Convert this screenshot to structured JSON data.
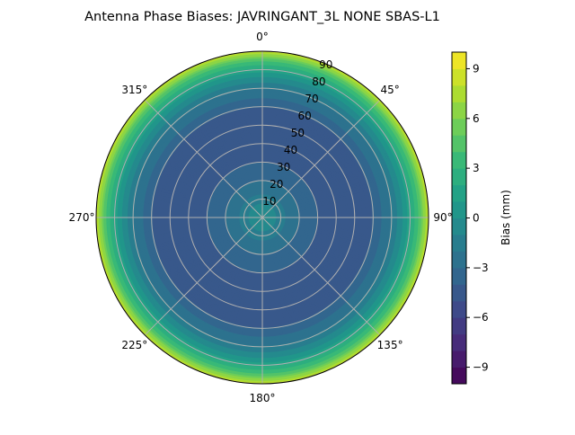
{
  "chart_data": {
    "type": "polar-contour",
    "title": "Antenna Phase Biases: JAVRINGANT_3L   NONE SBAS-L1",
    "angle_ticks": [
      "0°",
      "45°",
      "90°",
      "135°",
      "180°",
      "225°",
      "270°",
      "315°"
    ],
    "radial_ticks": [
      "10",
      "20",
      "30",
      "40",
      "50",
      "60",
      "70",
      "80",
      "90"
    ],
    "radial_range": [
      0,
      90
    ],
    "grid": true,
    "colormap": "viridis",
    "colorbar": {
      "label": "Bias (mm)",
      "range": [
        -10,
        10
      ],
      "level_step": 1,
      "ticks": [
        "−9",
        "−6",
        "−3",
        "0",
        "3",
        "6",
        "9"
      ]
    },
    "radial_profile": {
      "zenith_deg": [
        0,
        5,
        10,
        15,
        20,
        25,
        30,
        35,
        40,
        45,
        50,
        55,
        60,
        65,
        70,
        75,
        80,
        85,
        90
      ],
      "bias_mm": [
        0,
        -0.5,
        -1.5,
        -2.5,
        -3,
        -3.5,
        -4,
        -4.5,
        -4.5,
        -5,
        -5,
        -4.5,
        -4,
        -3,
        -2,
        -0.5,
        1.5,
        4,
        8
      ]
    }
  }
}
